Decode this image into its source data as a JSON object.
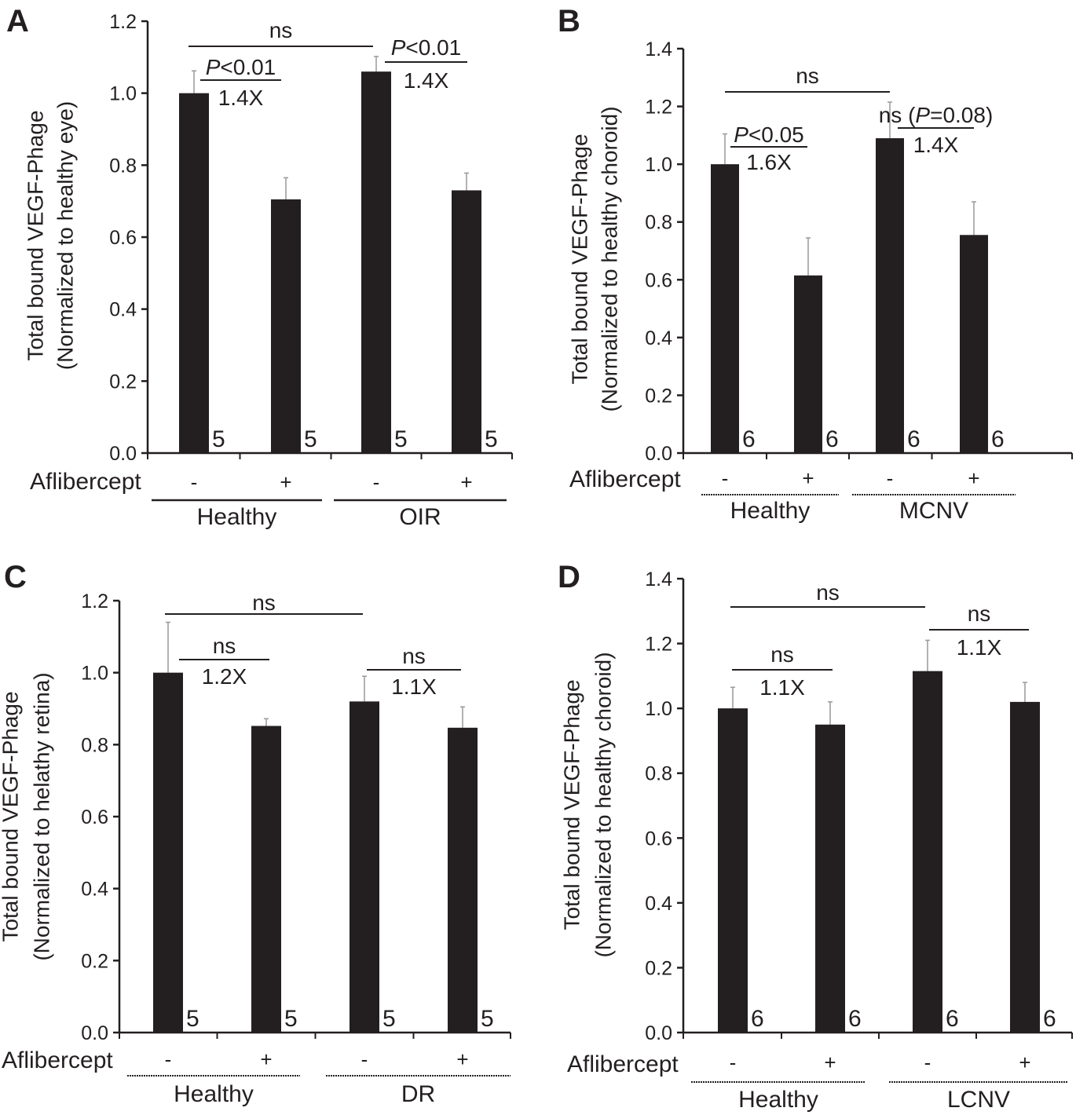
{
  "chart_data": [
    {
      "panel": "A",
      "type": "bar",
      "ylabel": "Total bound VEGF-Phage",
      "ylabel2": "(Normalized to healthy eye)",
      "ylim": [
        0,
        1.2
      ],
      "yticks": [
        "0.0",
        "0.2",
        "0.4",
        "0.6",
        "0.8",
        "1.0",
        "1.2"
      ],
      "row_label": "Aflibercept",
      "treatment": [
        "-",
        "+",
        "-",
        "+"
      ],
      "groups": [
        "Healthy",
        "OIR"
      ],
      "values": [
        1.0,
        0.705,
        1.06,
        0.73
      ],
      "errors": [
        0.062,
        0.06,
        0.042,
        0.048
      ],
      "n": [
        "5",
        "5",
        "5",
        "5"
      ],
      "annotations": [
        {
          "from": 0,
          "to": 2,
          "text": "ns"
        },
        {
          "from": 0,
          "to": 1,
          "text": "P<0.01",
          "fold": "1.4X"
        },
        {
          "from": 2,
          "to": 3,
          "text": "P<0.01",
          "fold": "1.4X"
        }
      ]
    },
    {
      "panel": "B",
      "type": "bar",
      "ylabel": "Total bound VEGF-Phage",
      "ylabel2": "(Normalized to healthy choroid)",
      "ylim": [
        0,
        1.4
      ],
      "yticks": [
        "0.0",
        "0.2",
        "0.4",
        "0.6",
        "0.8",
        "1.0",
        "1.2",
        "1.4"
      ],
      "row_label": "Aflibercept",
      "treatment": [
        "-",
        "+",
        "-",
        "+"
      ],
      "groups": [
        "Healthy",
        "MCNV"
      ],
      "values": [
        1.0,
        0.615,
        1.09,
        0.755
      ],
      "errors": [
        0.105,
        0.13,
        0.125,
        0.115
      ],
      "n": [
        "6",
        "6",
        "6",
        "6"
      ],
      "annotations": [
        {
          "from": 0,
          "to": 2,
          "text": "ns"
        },
        {
          "from": 0,
          "to": 1,
          "text": "P<0.05",
          "fold": "1.6X"
        },
        {
          "from": 2,
          "to": 3,
          "text": "ns (P=0.08)",
          "fold": "1.4X"
        }
      ]
    },
    {
      "panel": "C",
      "type": "bar",
      "ylabel": "Total bound VEGF-Phage",
      "ylabel2": "(Normalized to helathy retina)",
      "ylim": [
        0,
        1.2
      ],
      "yticks": [
        "0.0",
        "0.2",
        "0.4",
        "0.6",
        "0.8",
        "1.0",
        "1.2"
      ],
      "row_label": "Aflibercept",
      "treatment": [
        "-",
        "+",
        "-",
        "+"
      ],
      "groups": [
        "Healthy",
        "DR"
      ],
      "values": [
        1.0,
        0.852,
        0.92,
        0.847
      ],
      "errors": [
        0.14,
        0.02,
        0.07,
        0.058
      ],
      "n": [
        "5",
        "5",
        "5",
        "5"
      ],
      "annotations": [
        {
          "from": 0,
          "to": 2,
          "text": "ns"
        },
        {
          "from": 0,
          "to": 1,
          "text": "ns",
          "fold": "1.2X"
        },
        {
          "from": 2,
          "to": 3,
          "text": "ns",
          "fold": "1.1X"
        }
      ]
    },
    {
      "panel": "D",
      "type": "bar",
      "ylabel": "Total bound VEGF-Phage",
      "ylabel2": "(Normalized to healthy choroid)",
      "ylim": [
        0,
        1.4
      ],
      "yticks": [
        "0.0",
        "0.2",
        "0.4",
        "0.6",
        "0.8",
        "1.0",
        "1.2",
        "1.4"
      ],
      "row_label": "Aflibercept",
      "treatment": [
        "-",
        "+",
        "-",
        "+"
      ],
      "groups": [
        "Healthy",
        "LCNV"
      ],
      "values": [
        1.0,
        0.95,
        1.115,
        1.02
      ],
      "errors": [
        0.065,
        0.07,
        0.095,
        0.06
      ],
      "n": [
        "6",
        "6",
        "6",
        "6"
      ],
      "annotations": [
        {
          "from": 0,
          "to": 2,
          "text": "ns"
        },
        {
          "from": 0,
          "to": 1,
          "text": "ns",
          "fold": "1.1X"
        },
        {
          "from": 2,
          "to": 3,
          "text": "ns",
          "fold": "1.1X"
        }
      ]
    }
  ]
}
